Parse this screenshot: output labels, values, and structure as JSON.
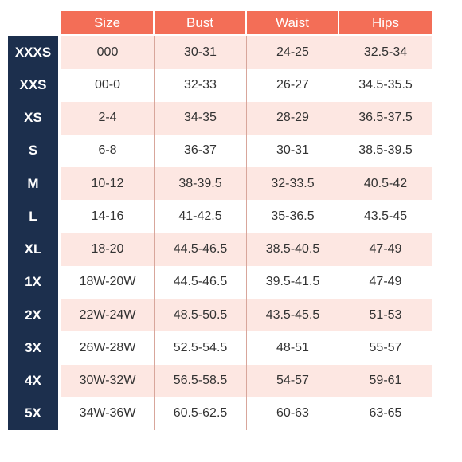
{
  "header": [
    "Size",
    "Bust",
    "Waist",
    "Hips"
  ],
  "rows": [
    {
      "label": "XXXS",
      "size": "000",
      "bust": "30-31",
      "waist": "24-25",
      "hips": "32.5-34"
    },
    {
      "label": "XXS",
      "size": "00-0",
      "bust": "32-33",
      "waist": "26-27",
      "hips": "34.5-35.5"
    },
    {
      "label": "XS",
      "size": "2-4",
      "bust": "34-35",
      "waist": "28-29",
      "hips": "36.5-37.5"
    },
    {
      "label": "S",
      "size": "6-8",
      "bust": "36-37",
      "waist": "30-31",
      "hips": "38.5-39.5"
    },
    {
      "label": "M",
      "size": "10-12",
      "bust": "38-39.5",
      "waist": "32-33.5",
      "hips": "40.5-42"
    },
    {
      "label": "L",
      "size": "14-16",
      "bust": "41-42.5",
      "waist": "35-36.5",
      "hips": "43.5-45"
    },
    {
      "label": "XL",
      "size": "18-20",
      "bust": "44.5-46.5",
      "waist": "38.5-40.5",
      "hips": "47-49"
    },
    {
      "label": "1X",
      "size": "18W-20W",
      "bust": "44.5-46.5",
      "waist": "39.5-41.5",
      "hips": "47-49"
    },
    {
      "label": "2X",
      "size": "22W-24W",
      "bust": "48.5-50.5",
      "waist": "43.5-45.5",
      "hips": "51-53"
    },
    {
      "label": "3X",
      "size": "26W-28W",
      "bust": "52.5-54.5",
      "waist": "48-51",
      "hips": "55-57"
    },
    {
      "label": "4X",
      "size": "30W-32W",
      "bust": "56.5-58.5",
      "waist": "54-57",
      "hips": "59-61"
    },
    {
      "label": "5X",
      "size": "34W-36W",
      "bust": "60.5-62.5",
      "waist": "60-63",
      "hips": "63-65"
    }
  ],
  "colors": {
    "header": "#f36e57",
    "label_column": "#1c2f4d",
    "shaded_row": "#fde7e2"
  }
}
